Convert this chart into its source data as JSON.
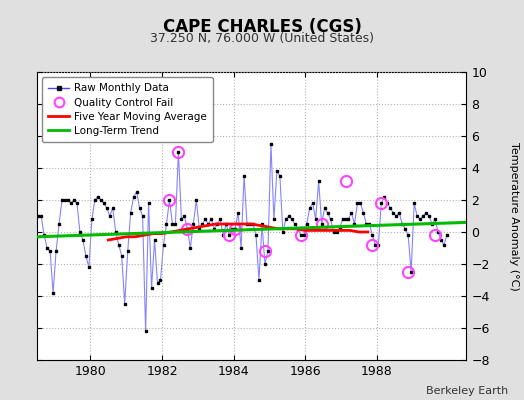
{
  "title": "CAPE CHARLES (CGS)",
  "subtitle": "37.250 N, 76.000 W (United States)",
  "ylabel": "Temperature Anomaly (°C)",
  "attribution": "Berkeley Earth",
  "xlim": [
    1978.5,
    1990.5
  ],
  "ylim": [
    -8,
    10
  ],
  "yticks": [
    -8,
    -6,
    -4,
    -2,
    0,
    2,
    4,
    6,
    8,
    10
  ],
  "xticks": [
    1980,
    1982,
    1984,
    1986,
    1988
  ],
  "bg_color": "#e0e0e0",
  "plot_bg_color": "#ffffff",
  "raw_x": [
    1978.042,
    1978.125,
    1978.208,
    1978.292,
    1978.375,
    1978.458,
    1978.542,
    1978.625,
    1978.708,
    1978.792,
    1978.875,
    1978.958,
    1979.042,
    1979.125,
    1979.208,
    1979.292,
    1979.375,
    1979.458,
    1979.542,
    1979.625,
    1979.708,
    1979.792,
    1979.875,
    1979.958,
    1980.042,
    1980.125,
    1980.208,
    1980.292,
    1980.375,
    1980.458,
    1980.542,
    1980.625,
    1980.708,
    1980.792,
    1980.875,
    1980.958,
    1981.042,
    1981.125,
    1981.208,
    1981.292,
    1981.375,
    1981.458,
    1981.542,
    1981.625,
    1981.708,
    1981.792,
    1981.875,
    1981.958,
    1982.042,
    1982.125,
    1982.208,
    1982.292,
    1982.375,
    1982.458,
    1982.542,
    1982.625,
    1982.708,
    1982.792,
    1982.875,
    1982.958,
    1983.042,
    1983.125,
    1983.208,
    1983.292,
    1983.375,
    1983.458,
    1983.542,
    1983.625,
    1983.708,
    1983.792,
    1983.875,
    1983.958,
    1984.042,
    1984.125,
    1984.208,
    1984.292,
    1984.375,
    1984.458,
    1984.542,
    1984.625,
    1984.708,
    1984.792,
    1984.875,
    1984.958,
    1985.042,
    1985.125,
    1985.208,
    1985.292,
    1985.375,
    1985.458,
    1985.542,
    1985.625,
    1985.708,
    1985.792,
    1985.875,
    1985.958,
    1986.042,
    1986.125,
    1986.208,
    1986.292,
    1986.375,
    1986.458,
    1986.542,
    1986.625,
    1986.708,
    1986.792,
    1986.875,
    1986.958,
    1987.042,
    1987.125,
    1987.208,
    1987.292,
    1987.375,
    1987.458,
    1987.542,
    1987.625,
    1987.708,
    1987.792,
    1987.875,
    1987.958,
    1988.042,
    1988.125,
    1988.208,
    1988.292,
    1988.375,
    1988.458,
    1988.542,
    1988.625,
    1988.708,
    1988.792,
    1988.875,
    1988.958,
    1989.042,
    1989.125,
    1989.208,
    1989.292,
    1989.375,
    1989.458,
    1989.542,
    1989.625,
    1989.708,
    1989.792,
    1989.875,
    1989.958
  ],
  "raw_y": [
    1.8,
    0.5,
    1.8,
    0.0,
    1.2,
    1.5,
    1.0,
    1.0,
    -0.2,
    -1.0,
    -1.2,
    -3.8,
    -1.2,
    0.5,
    2.0,
    2.0,
    2.0,
    1.8,
    2.0,
    1.8,
    0.0,
    -0.5,
    -1.5,
    -2.2,
    0.8,
    2.0,
    2.2,
    2.0,
    1.8,
    1.5,
    1.0,
    1.5,
    0.0,
    -0.8,
    -1.5,
    -4.5,
    -1.2,
    1.2,
    2.2,
    2.5,
    1.5,
    1.0,
    -6.2,
    1.8,
    -3.5,
    -0.5,
    -3.2,
    -3.0,
    -0.8,
    0.5,
    2.0,
    0.5,
    0.5,
    5.0,
    0.8,
    1.0,
    0.2,
    -1.0,
    0.5,
    2.0,
    0.2,
    0.5,
    0.8,
    0.5,
    0.8,
    0.2,
    0.5,
    0.8,
    -0.2,
    0.5,
    -0.2,
    0.2,
    0.2,
    1.2,
    -1.0,
    3.5,
    0.5,
    0.5,
    0.5,
    -0.2,
    -3.0,
    0.5,
    -2.0,
    -1.2,
    5.5,
    0.8,
    3.8,
    3.5,
    0.0,
    0.8,
    1.0,
    0.8,
    0.5,
    0.2,
    -0.2,
    -0.2,
    0.5,
    1.5,
    1.8,
    0.8,
    3.2,
    0.5,
    1.5,
    1.2,
    0.8,
    0.0,
    0.0,
    0.2,
    0.8,
    0.8,
    0.8,
    1.2,
    0.5,
    1.8,
    1.8,
    1.2,
    0.5,
    0.5,
    -0.2,
    -0.8,
    -0.8,
    1.8,
    2.2,
    1.8,
    1.5,
    1.2,
    1.0,
    1.2,
    0.5,
    0.2,
    -0.2,
    -2.5,
    1.8,
    1.0,
    0.8,
    1.0,
    1.2,
    1.0,
    0.5,
    0.8,
    0.0,
    -0.5,
    -0.8,
    -0.2
  ],
  "qc_fail_x": [
    1982.458,
    1982.208,
    1982.708,
    1983.875,
    1984.042,
    1984.875,
    1985.875,
    1986.458,
    1987.125,
    1987.875,
    1988.125,
    1988.875,
    1989.625
  ],
  "qc_fail_y": [
    5.0,
    2.0,
    0.2,
    -0.2,
    0.2,
    -1.2,
    -0.2,
    0.5,
    3.2,
    -0.8,
    1.8,
    -2.5,
    -0.2
  ],
  "moving_avg_x": [
    1980.5,
    1980.75,
    1981.0,
    1981.25,
    1981.5,
    1981.75,
    1982.0,
    1982.25,
    1982.5,
    1982.75,
    1983.0,
    1983.25,
    1983.5,
    1983.75,
    1984.0,
    1984.25,
    1984.5,
    1984.75,
    1985.0,
    1985.25,
    1985.5,
    1985.75,
    1986.0,
    1986.25,
    1986.5,
    1986.75,
    1987.0,
    1987.25,
    1987.5,
    1987.75
  ],
  "moving_avg_y": [
    -0.5,
    -0.4,
    -0.3,
    -0.3,
    -0.2,
    -0.1,
    -0.1,
    0.0,
    0.1,
    0.2,
    0.3,
    0.4,
    0.5,
    0.5,
    0.5,
    0.5,
    0.5,
    0.4,
    0.3,
    0.2,
    0.2,
    0.2,
    0.1,
    0.1,
    0.1,
    0.1,
    0.1,
    0.1,
    0.0,
    0.0
  ],
  "trend_x": [
    1978.5,
    1990.5
  ],
  "trend_y": [
    -0.3,
    0.6
  ],
  "line_color": "#3333ff",
  "line_alpha": 0.6,
  "dot_color": "#000000",
  "qc_color": "#ff44ff",
  "mavg_color": "#ff0000",
  "trend_color": "#00bb00"
}
